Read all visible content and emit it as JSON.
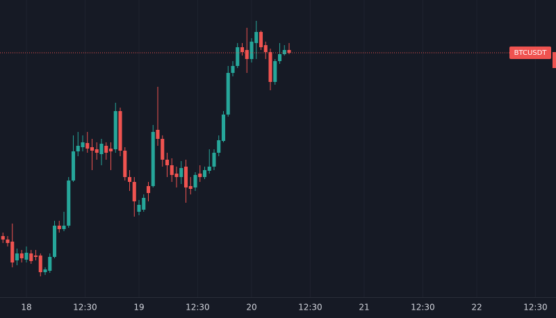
{
  "chart_data": {
    "type": "candlestick",
    "symbol": "BTCUSDT",
    "x": [
      -5,
      -4,
      -3,
      -2,
      -1,
      0,
      1,
      2,
      3,
      4,
      5,
      6,
      7,
      8,
      9,
      10,
      11,
      12,
      13,
      14,
      15,
      16,
      17,
      18,
      19,
      20,
      21,
      22,
      23,
      24,
      25,
      26,
      27,
      28,
      29,
      30,
      31,
      32,
      33,
      34,
      35,
      36,
      37,
      38,
      39,
      40,
      41,
      42,
      43,
      44,
      45,
      46,
      47,
      48,
      49,
      50,
      51,
      52,
      53,
      54,
      55,
      56
    ],
    "open": [
      118,
      113,
      110,
      83,
      93,
      84,
      93,
      90,
      90,
      66,
      68,
      88,
      133,
      128,
      133,
      198,
      240,
      246,
      252,
      246,
      243,
      236,
      248,
      244,
      243,
      298,
      241,
      203,
      196,
      153,
      156,
      190,
      190,
      271,
      258,
      228,
      220,
      208,
      203,
      218,
      190,
      188,
      208,
      203,
      212,
      218,
      238,
      255,
      293,
      353,
      363,
      390,
      386,
      373,
      396,
      412,
      393,
      383,
      340,
      370,
      380,
      386
    ],
    "high": [
      123,
      118,
      136,
      100,
      98,
      103,
      98,
      98,
      93,
      73,
      93,
      140,
      140,
      153,
      203,
      263,
      268,
      263,
      268,
      258,
      253,
      258,
      253,
      253,
      310,
      303,
      246,
      213,
      203,
      170,
      178,
      196,
      278,
      333,
      263,
      238,
      230,
      218,
      226,
      228,
      203,
      210,
      220,
      218,
      243,
      243,
      263,
      298,
      363,
      370,
      396,
      396,
      418,
      403,
      428,
      414,
      398,
      388,
      373,
      396,
      393,
      396
    ],
    "low": [
      108,
      103,
      73,
      76,
      80,
      80,
      78,
      83,
      60,
      62,
      65,
      86,
      123,
      125,
      130,
      196,
      233,
      240,
      238,
      213,
      228,
      220,
      228,
      213,
      238,
      233,
      198,
      183,
      146,
      148,
      153,
      168,
      188,
      248,
      218,
      203,
      196,
      188,
      193,
      166,
      178,
      183,
      196,
      200,
      208,
      213,
      233,
      253,
      290,
      348,
      360,
      378,
      353,
      368,
      373,
      386,
      373,
      328,
      336,
      366,
      378,
      380
    ],
    "close": [
      113,
      108,
      80,
      93,
      86,
      94,
      82,
      88,
      66,
      70,
      88,
      133,
      128,
      133,
      198,
      240,
      248,
      253,
      244,
      241,
      238,
      251,
      238,
      240,
      298,
      241,
      203,
      196,
      168,
      163,
      173,
      180,
      268,
      258,
      228,
      220,
      206,
      203,
      216,
      188,
      186,
      206,
      203,
      213,
      218,
      238,
      256,
      293,
      353,
      363,
      390,
      383,
      373,
      398,
      412,
      390,
      383,
      340,
      370,
      380,
      386,
      382
    ],
    "up_color": "#26a69a",
    "down_color": "#ef5350",
    "xlim": [
      -5.63,
      112.89
    ],
    "ylim": [
      30,
      458
    ],
    "xticks": [
      {
        "value": 0,
        "label": "18"
      },
      {
        "value": 12.5,
        "label": "12:30"
      },
      {
        "value": 24,
        "label": "19"
      },
      {
        "value": 36.5,
        "label": "12:30"
      },
      {
        "value": 48,
        "label": "20"
      },
      {
        "value": 60.5,
        "label": "12:30"
      },
      {
        "value": 72,
        "label": "21"
      },
      {
        "value": 84.5,
        "label": "12:30"
      },
      {
        "value": 96,
        "label": "22"
      },
      {
        "value": 108.5,
        "label": "12:30"
      }
    ],
    "grid": true
  }
}
